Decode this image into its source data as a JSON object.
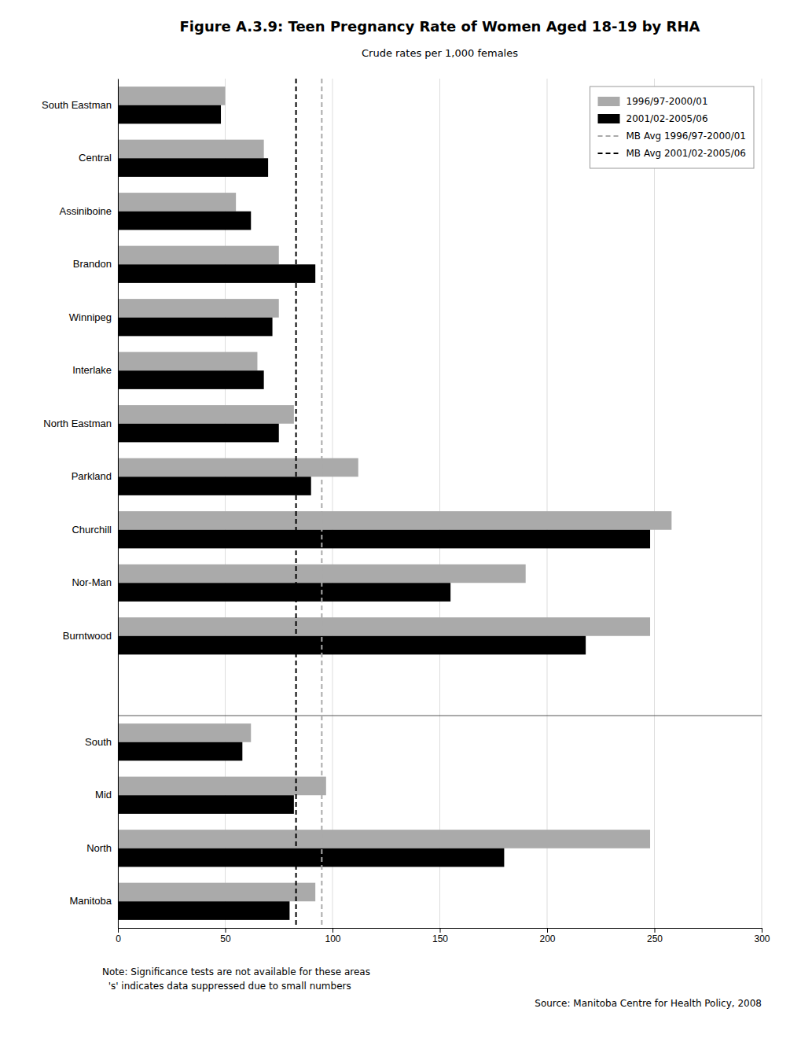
{
  "chart_data": {
    "type": "bar",
    "orientation": "horizontal",
    "title": "Figure A.3.9: Teen Pregnancy Rate of Women Aged 18-19 by RHA",
    "subtitle": "Crude rates per 1,000 females",
    "categories": [
      "South Eastman",
      "Central",
      "Assiniboine",
      "Brandon",
      "Winnipeg",
      "Interlake",
      "North Eastman",
      "Parkland",
      "Churchill",
      "Nor-Man",
      "Burntwood",
      null,
      "South",
      "Mid",
      "North",
      "Manitoba"
    ],
    "series": [
      {
        "name": "1996/97-2000/01",
        "color": "#aaaaaa",
        "values": [
          50,
          68,
          55,
          75,
          75,
          65,
          82,
          112,
          258,
          190,
          248,
          null,
          62,
          97,
          248,
          92
        ]
      },
      {
        "name": "2001/02-2005/06",
        "color": "#000000",
        "values": [
          48,
          70,
          62,
          92,
          72,
          68,
          75,
          90,
          248,
          155,
          218,
          null,
          58,
          82,
          180,
          80
        ]
      }
    ],
    "reference_lines": [
      {
        "name": "MB Avg 1996/97-2000/01",
        "value": 95,
        "color": "#aaaaaa",
        "line_style": "dashed"
      },
      {
        "name": "MB Avg 2001/02-2005/06",
        "value": 83,
        "color": "#000000",
        "line_style": "dashed"
      }
    ],
    "xlim": [
      0,
      300
    ],
    "xticks": [
      0,
      50,
      100,
      150,
      200,
      250,
      300
    ],
    "grid": true,
    "legend": "upper-right",
    "notes": [
      "Note: Significance tests are not available for these areas",
      "  's' indicates data suppressed due to small numbers"
    ],
    "source": "Source: Manitoba Centre for Health Policy, 2008"
  }
}
